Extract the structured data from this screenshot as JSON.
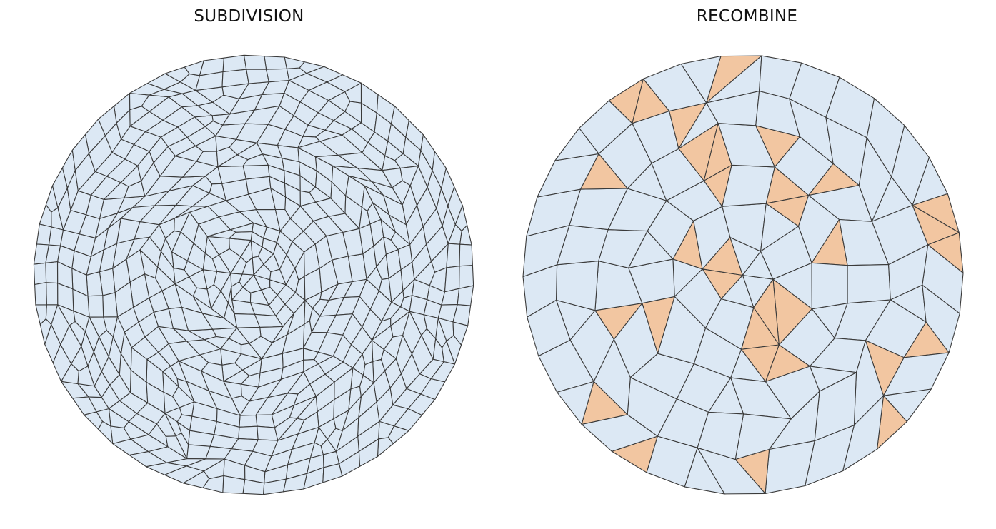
{
  "panels": {
    "left": {
      "title": "SUBDIVISION"
    },
    "right": {
      "title": "RECOMBINE"
    }
  },
  "colors": {
    "quad_fill": "#dce8f4",
    "tri_fill": "#f2c6a1",
    "edge": "#3a3a3a",
    "background": "#ffffff"
  }
}
